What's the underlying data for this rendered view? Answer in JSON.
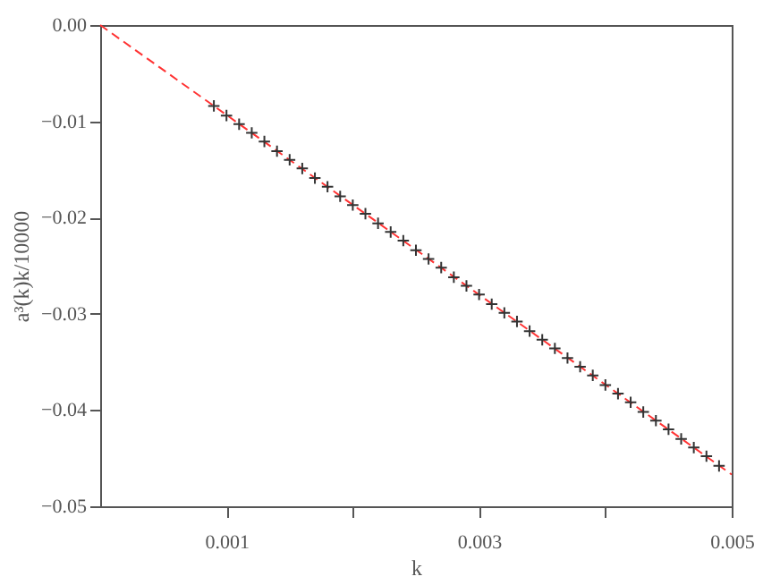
{
  "chart_data": {
    "type": "scatter",
    "xlabel": "k",
    "ylabel": "a³(k)k/10000",
    "xlim": [
      0,
      0.005
    ],
    "ylim": [
      -0.05,
      0.0
    ],
    "xticks": [
      {
        "value": 0.001,
        "label": "0.001"
      },
      {
        "value": 0.002,
        "label": null
      },
      {
        "value": 0.003,
        "label": "0.003"
      },
      {
        "value": 0.004,
        "label": null
      },
      {
        "value": 0.005,
        "label": "0.005"
      }
    ],
    "yticks": [
      {
        "value": -0.05,
        "label": "−0.05"
      },
      {
        "value": -0.04,
        "label": "−0.04"
      },
      {
        "value": -0.03,
        "label": "−0.03"
      },
      {
        "value": -0.02,
        "label": "−0.02"
      },
      {
        "value": -0.01,
        "label": "−0.01"
      },
      {
        "value": 0.0,
        "label": "0.00"
      }
    ],
    "grid": false,
    "series": [
      {
        "type": "line",
        "color": "#ff3333",
        "line_style": "dashed",
        "marker": "none",
        "x": [
          0,
          0.005
        ],
        "values": [
          0,
          -0.0467
        ]
      },
      {
        "color": "#333333",
        "marker": "cross",
        "x": [
          0.0009,
          0.001,
          0.0011,
          0.0012,
          0.0013,
          0.0014,
          0.0015,
          0.0016,
          0.0017,
          0.0018,
          0.0019,
          0.002,
          0.0021,
          0.0022,
          0.0023,
          0.0024,
          0.0025,
          0.0026,
          0.0027,
          0.0028,
          0.0029,
          0.003,
          0.0031,
          0.0032,
          0.0033,
          0.0034,
          0.0035,
          0.0036,
          0.0037,
          0.0038,
          0.0039,
          0.004,
          0.0041,
          0.0042,
          0.0043,
          0.0044,
          0.0045,
          0.0046,
          0.0047,
          0.0048,
          0.0049
        ],
        "values": [
          -0.0084,
          -0.0094,
          -0.0103,
          -0.0112,
          -0.0121,
          -0.0131,
          -0.014,
          -0.0149,
          -0.0159,
          -0.0168,
          -0.0178,
          -0.0187,
          -0.0196,
          -0.0206,
          -0.0215,
          -0.0224,
          -0.0234,
          -0.0243,
          -0.0252,
          -0.0262,
          -0.0271,
          -0.028,
          -0.029,
          -0.0299,
          -0.0308,
          -0.0318,
          -0.0327,
          -0.0336,
          -0.0346,
          -0.0355,
          -0.0364,
          -0.0374,
          -0.0383,
          -0.0392,
          -0.0402,
          -0.0411,
          -0.042,
          -0.043,
          -0.0439,
          -0.0448,
          -0.0458
        ]
      }
    ]
  }
}
